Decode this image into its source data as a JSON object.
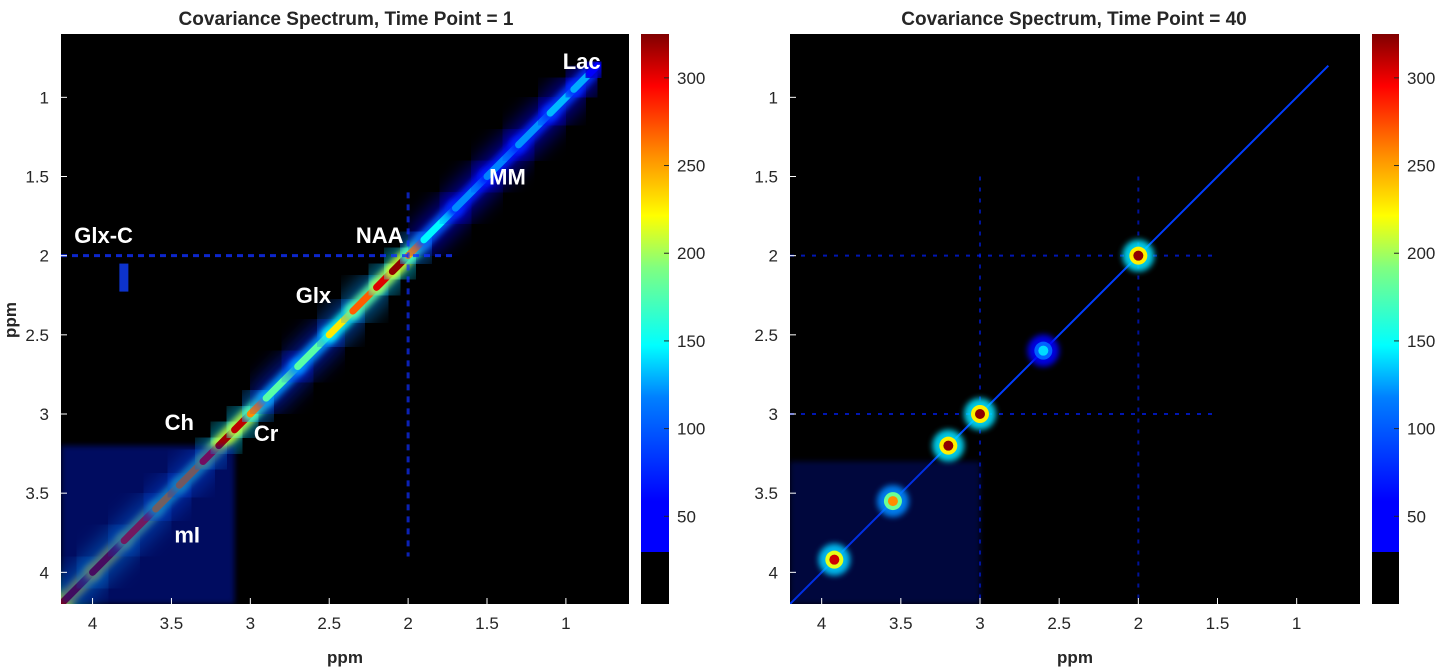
{
  "chart_data": [
    {
      "type": "heatmap",
      "title": "Covariance Spectrum, Time Point = 1",
      "xlabel": "ppm",
      "ylabel": "ppm",
      "xlim": [
        4.2,
        0.6
      ],
      "ylim": [
        0.6,
        4.2
      ],
      "x_reversed": true,
      "xticks": [
        4,
        3.5,
        3,
        2.5,
        2,
        1.5,
        1
      ],
      "yticks": [
        1,
        1.5,
        2,
        2.5,
        3,
        3.5,
        4
      ],
      "colorbar": {
        "colormap": "jet",
        "range": [
          0,
          325
        ],
        "ticks": [
          50,
          100,
          150,
          200,
          250,
          300
        ],
        "min_visible": 30
      },
      "background": "#000000",
      "diagonal": [
        {
          "ppm": 4.2,
          "value": 320
        },
        {
          "ppm": 4.0,
          "value": 320
        },
        {
          "ppm": 3.8,
          "value": 310
        },
        {
          "ppm": 3.6,
          "value": 240
        },
        {
          "ppm": 3.45,
          "value": 210
        },
        {
          "ppm": 3.3,
          "value": 250
        },
        {
          "ppm": 3.2,
          "value": 320
        },
        {
          "ppm": 3.1,
          "value": 310
        },
        {
          "ppm": 3.0,
          "value": 300
        },
        {
          "ppm": 2.9,
          "value": 180
        },
        {
          "ppm": 2.7,
          "value": 120
        },
        {
          "ppm": 2.5,
          "value": 180
        },
        {
          "ppm": 2.35,
          "value": 240
        },
        {
          "ppm": 2.2,
          "value": 270
        },
        {
          "ppm": 2.1,
          "value": 320
        },
        {
          "ppm": 2.0,
          "value": 320
        },
        {
          "ppm": 1.9,
          "value": 150
        },
        {
          "ppm": 1.7,
          "value": 90
        },
        {
          "ppm": 1.5,
          "value": 80
        },
        {
          "ppm": 1.3,
          "value": 85
        },
        {
          "ppm": 1.1,
          "value": 90
        },
        {
          "ppm": 0.95,
          "value": 110
        },
        {
          "ppm": 0.85,
          "value": 80
        },
        {
          "ppm": 0.8,
          "value": 0
        }
      ],
      "annotations": [
        {
          "label": "Lac",
          "x": 0.9,
          "y": 0.82
        },
        {
          "label": "MM",
          "x": 1.37,
          "y": 1.55
        },
        {
          "label": "Glx-C",
          "x": 3.93,
          "y": 1.92
        },
        {
          "label": "NAA",
          "x": 2.18,
          "y": 1.92
        },
        {
          "label": "Glx",
          "x": 2.6,
          "y": 2.3
        },
        {
          "label": "Ch",
          "x": 3.45,
          "y": 3.1
        },
        {
          "label": "Cr",
          "x": 2.9,
          "y": 3.17
        },
        {
          "label": "mI",
          "x": 3.4,
          "y": 3.81
        }
      ]
    },
    {
      "type": "heatmap",
      "title": "Covariance Spectrum, Time Point = 40",
      "xlabel": "ppm",
      "ylabel": "",
      "xlim": [
        4.2,
        0.6
      ],
      "ylim": [
        0.6,
        4.2
      ],
      "x_reversed": true,
      "xticks": [
        4,
        3.5,
        3,
        2.5,
        2,
        1.5,
        1
      ],
      "yticks": [
        1,
        1.5,
        2,
        2.5,
        3,
        3.5,
        4
      ],
      "colorbar": {
        "colormap": "jet",
        "range": [
          0,
          325
        ],
        "ticks": [
          50,
          100,
          150,
          200,
          250,
          300
        ],
        "min_visible": 30
      },
      "background": "#000000",
      "diagonal": [
        {
          "ppm": 4.2,
          "value": 60
        },
        {
          "ppm": 0.8,
          "value": 60
        }
      ],
      "peaks": [
        {
          "ppm": 2.0,
          "value": 320
        },
        {
          "ppm": 3.0,
          "value": 320
        },
        {
          "ppm": 3.2,
          "value": 320
        },
        {
          "ppm": 3.55,
          "value": 240
        },
        {
          "ppm": 3.92,
          "value": 300
        },
        {
          "ppm": 2.6,
          "value": 110
        }
      ]
    }
  ]
}
